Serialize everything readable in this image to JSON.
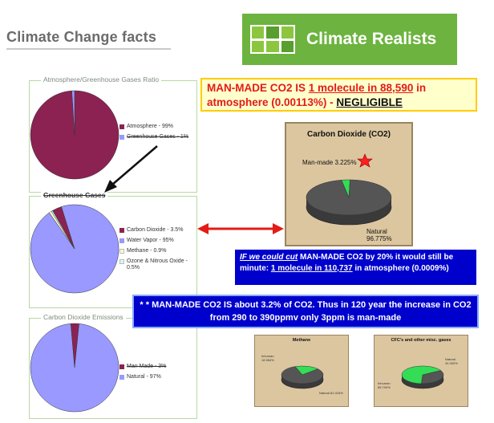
{
  "header": {
    "title": "Climate Change facts",
    "logo_text": "Climate Realists"
  },
  "messages": {
    "man_made_line1_a": "MAN-MADE CO2 IS ",
    "man_made_line1_b": "1 molecule in 88,590",
    "man_made_line1_c": " in",
    "man_made_line2_a": "atmosphere (0.00113%) - ",
    "man_made_line2_b": "NEGLIGIBLE",
    "cut_a": "IF we could cut",
    "cut_b": " MAN-MADE CO2 by 20% it would still be minute: ",
    "cut_c": "1 molecule in 110,737",
    "cut_d": " in atmosphere (0.0009%)",
    "note": "* * MAN-MADE  CO2  IS about  3.2%  of CO2.  Thus in 120 year the increase in CO2 from 290 to 390ppmv only 3ppm is man-made"
  },
  "chart_data": [
    {
      "type": "pie",
      "title": "Atmosphere/Greenhouse Gases Ratio",
      "labels": [
        "Atmosphere - 99%",
        "Greenhouse Gases - 1%"
      ],
      "values": [
        99,
        1
      ],
      "colors": [
        "#8b2252",
        "#9999ff"
      ]
    },
    {
      "type": "pie",
      "title": "Greenhouse Gases",
      "labels": [
        "Carbon Dioxide - 3.5%",
        "Water Vapor - 95%",
        "Methane - 0.9%",
        "Ozone & Nitrous Oxide - 0.5%"
      ],
      "values": [
        3.5,
        95,
        0.9,
        0.5
      ],
      "colors": [
        "#8b2252",
        "#9999ff",
        "#ffffcc",
        "#ccffff"
      ]
    },
    {
      "type": "pie",
      "title": "Carbon Dioxide Emissions",
      "labels": [
        "Man Made - 3%",
        "Natural - 97%"
      ],
      "values": [
        3,
        97
      ],
      "colors": [
        "#8b2252",
        "#9999ff"
      ]
    },
    {
      "type": "pie",
      "title": "Carbon Dioxide (CO2)",
      "labels": [
        "Man-made 3.225%",
        "Natural 96.775%"
      ],
      "values": [
        3.225,
        96.775
      ],
      "colors": [
        "#33dd55",
        "#555555"
      ]
    },
    {
      "type": "pie",
      "title": "Methane",
      "labels": [
        "Inhuman 18.984%",
        "Natural 81.016%"
      ],
      "values": [
        18.984,
        81.016
      ],
      "colors": [
        "#33dd55",
        "#555555"
      ]
    },
    {
      "type": "pie",
      "title": "CFC's and other misc. gases",
      "labels": [
        "Natural 34.300%",
        "Inhuman 65.700%"
      ],
      "values": [
        34.3,
        65.7
      ],
      "colors": [
        "#555555",
        "#33dd55"
      ]
    }
  ]
}
